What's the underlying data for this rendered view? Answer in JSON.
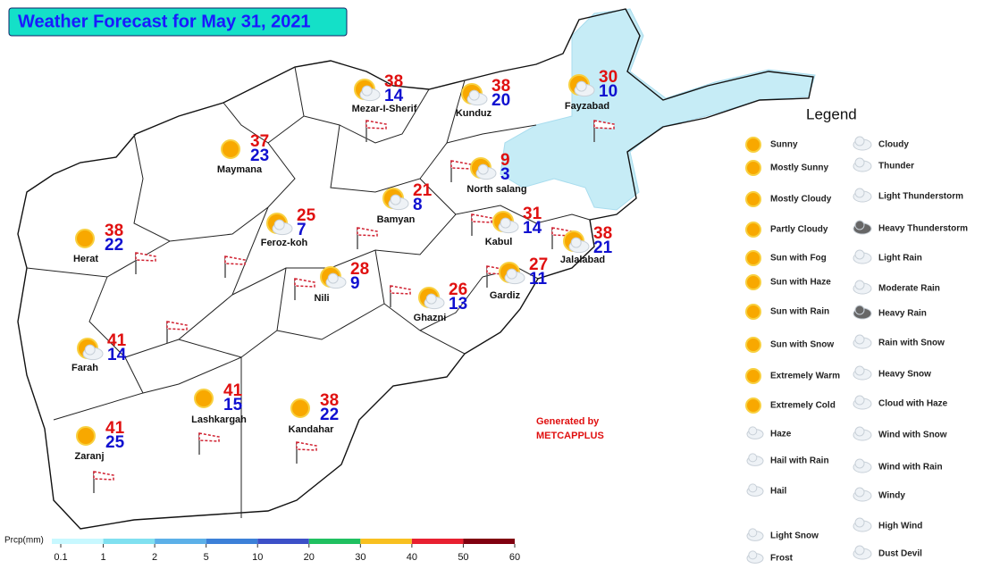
{
  "title": "Weather Forecast for May 31, 2021",
  "cities": [
    {
      "name": "Mezar-I-Sherif",
      "max": 38,
      "min": 14
    },
    {
      "name": "Kunduz",
      "max": 38,
      "min": 20
    },
    {
      "name": "Fayzabad",
      "max": 30,
      "min": 10
    },
    {
      "name": "Maymana",
      "max": 37,
      "min": 23
    },
    {
      "name": "North salang",
      "max": 9,
      "min": 3
    },
    {
      "name": "Bamyan",
      "max": 21,
      "min": 8
    },
    {
      "name": "Feroz-koh",
      "max": 25,
      "min": 7
    },
    {
      "name": "Kabul",
      "max": 31,
      "min": 14
    },
    {
      "name": "Jalalabad",
      "max": 38,
      "min": 21
    },
    {
      "name": "Herat",
      "max": 38,
      "min": 22
    },
    {
      "name": "Nili",
      "max": 28,
      "min": 9
    },
    {
      "name": "Gardiz",
      "max": 27,
      "min": 11
    },
    {
      "name": "Ghazni",
      "max": 26,
      "min": 13
    },
    {
      "name": "Farah",
      "max": 41,
      "min": 14
    },
    {
      "name": "Lashkargah",
      "max": 41,
      "min": 15
    },
    {
      "name": "Kandahar",
      "max": 38,
      "min": 22
    },
    {
      "name": "Zaranj",
      "max": 41,
      "min": 25
    }
  ],
  "legend": {
    "title": "Legend",
    "left": [
      "Sunny",
      "Mostly Sunny",
      "Mostly Cloudy",
      "Partly Cloudy",
      "Sun with Fog",
      "Sun with Haze",
      "Sun with Rain",
      "Sun with Snow",
      "Extremely Warm",
      "Extremely Cold",
      "Haze",
      "Hail with Rain",
      "Hail",
      "Light Snow",
      "Frost"
    ],
    "right": [
      "Cloudy",
      "Thunder",
      "Light Thunderstorm",
      "Heavy Thunderstorm",
      "Light Rain",
      "Moderate Rain",
      "Heavy Rain",
      "Rain with Snow",
      "Heavy Snow",
      "Cloud with Haze",
      "Wind with Snow",
      "Wind with Rain",
      "Windy",
      "High Wind",
      "Dust Devil"
    ]
  },
  "credit": [
    "Generated by",
    "METCAPPLUS"
  ],
  "precip_scale": {
    "label": "Prcp(mm)",
    "ticks": [
      0.1,
      1,
      2,
      5,
      10,
      20,
      30,
      40,
      50,
      60
    ],
    "colors": [
      "#c8f8ff",
      "#80e0f0",
      "#5cb0e8",
      "#3c80d8",
      "#3c50c8",
      "#20c060",
      "#f8c020",
      "#e82030",
      "#800010"
    ]
  }
}
